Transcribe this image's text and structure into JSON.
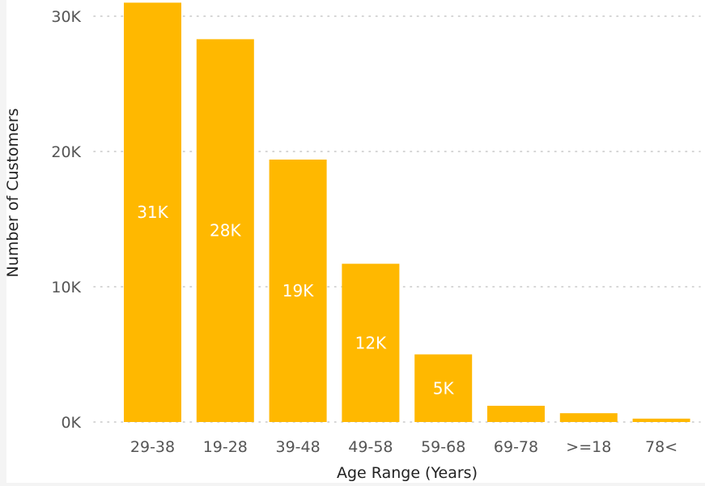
{
  "chart_data": {
    "type": "bar",
    "categories": [
      "29-38",
      "19-28",
      "39-48",
      "49-58",
      "59-68",
      "69-78",
      ">=18",
      "78<"
    ],
    "values": [
      31000,
      28300,
      19400,
      11700,
      5000,
      1200,
      650,
      250
    ],
    "data_labels": [
      "31K",
      "28K",
      "19K",
      "12K",
      "5K",
      "",
      "",
      ""
    ],
    "xlabel": "Age Range (Years)",
    "ylabel": "Number of Customers",
    "yticks": [
      0,
      10000,
      20000,
      30000
    ],
    "ytick_labels": [
      "0K",
      "10K",
      "20K",
      "30K"
    ],
    "ylim": [
      0,
      30000
    ],
    "grid": true,
    "legend": "none",
    "bar_color": "#FFB800",
    "label_color": "#FFFFFF",
    "axis_text_color": "#555555",
    "grid_color": "#C8C8C8"
  }
}
